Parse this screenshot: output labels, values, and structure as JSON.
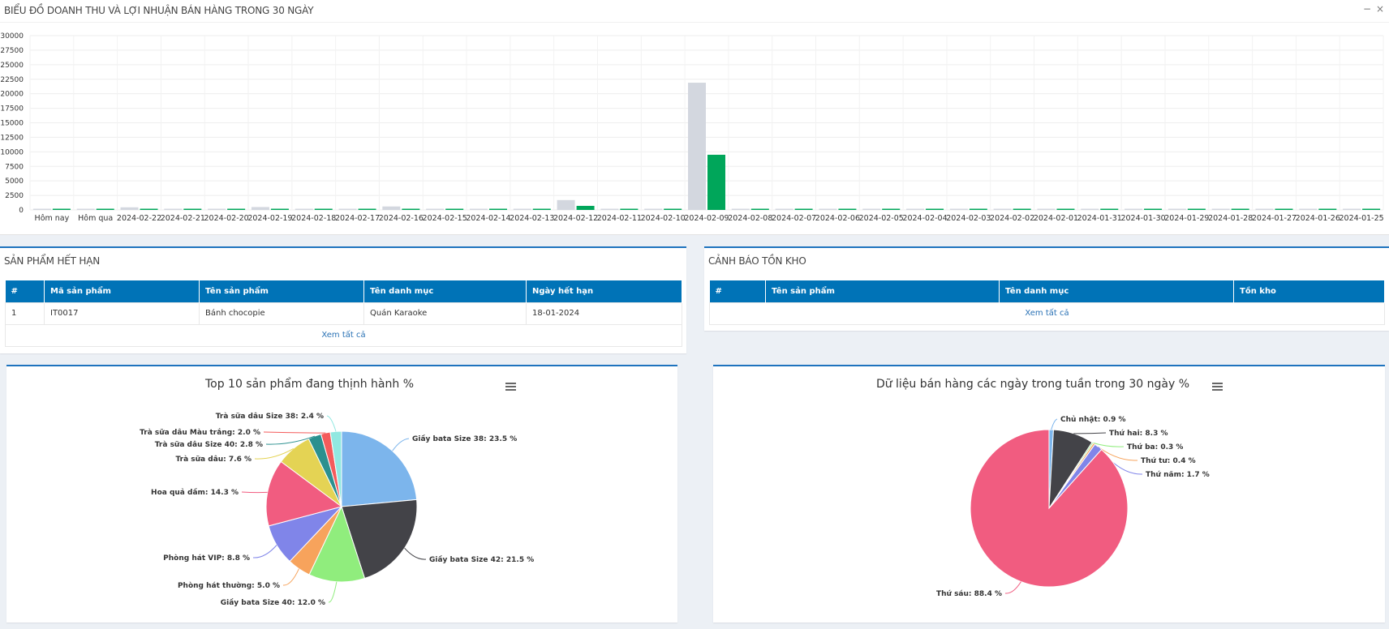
{
  "header": {
    "title": "BIỂU ĐỒ DOANH THU VÀ LỢI NHUẬN BÁN HÀNG TRONG 30 NGÀY",
    "minimize": "−",
    "close": "×"
  },
  "bar_chart": {
    "type": "bar",
    "categories": [
      "Hôm nay",
      "Hôm qua",
      "2024-02-22",
      "2024-02-21",
      "2024-02-20",
      "2024-02-19",
      "2024-02-18",
      "2024-02-17",
      "2024-02-16",
      "2024-02-15",
      "2024-02-14",
      "2024-02-13",
      "2024-02-12",
      "2024-02-11",
      "2024-02-10",
      "2024-02-09",
      "2024-02-08",
      "2024-02-07",
      "2024-02-06",
      "2024-02-05",
      "2024-02-04",
      "2024-02-03",
      "2024-02-02",
      "2024-02-01",
      "2024-01-31",
      "2024-01-30",
      "2024-01-29",
      "2024-01-28",
      "2024-01-27",
      "2024-01-26",
      "2024-01-25"
    ],
    "series": [
      {
        "color": "#d3d7df",
        "values": [
          50,
          100,
          450,
          50,
          100,
          500,
          50,
          80,
          600,
          50,
          50,
          50,
          1700,
          150,
          50,
          21900,
          80,
          80,
          50,
          50,
          50,
          50,
          50,
          50,
          50,
          50,
          50,
          50,
          50,
          50,
          50
        ]
      },
      {
        "color": "#00a65a",
        "values": [
          200,
          200,
          200,
          200,
          200,
          200,
          200,
          200,
          200,
          200,
          200,
          200,
          700,
          200,
          200,
          9500,
          200,
          200,
          200,
          200,
          200,
          200,
          200,
          200,
          200,
          200,
          200,
          200,
          200,
          200,
          200
        ]
      }
    ],
    "yticks": [
      "0",
      "2500",
      "5000",
      "7500",
      "10000",
      "12500",
      "15000",
      "17500",
      "20000",
      "22500",
      "25000",
      "27500",
      "30000"
    ],
    "ylim": [
      0,
      30000
    ]
  },
  "expired": {
    "title": "SẢN PHẨM HẾT HẠN",
    "columns": [
      "#",
      "Mã sản phẩm",
      "Tên sản phẩm",
      "Tên danh mục",
      "Ngày hết hạn"
    ],
    "rows": [
      [
        "1",
        "IT0017",
        "Bánh chocopie",
        "Quán Karaoke",
        "18-01-2024"
      ]
    ],
    "more": "Xem tất cả"
  },
  "stock": {
    "title": "CẢNH BÁO TỒN KHO",
    "columns": [
      "#",
      "Tên sản phẩm",
      "Tên danh mục",
      "Tồn kho"
    ],
    "more": "Xem tất cả"
  },
  "pie_products": {
    "title": "Top 10 sản phẩm đang thịnh hành %",
    "chart_data": {
      "type": "pie",
      "slices": [
        {
          "label": "Giầy bata Size 38: 23.5 %",
          "value": 23.5,
          "color": "#7cb5ec"
        },
        {
          "label": "Giầy bata Size 42: 21.5 %",
          "value": 21.5,
          "color": "#434348"
        },
        {
          "label": "Giầy bata Size 40: 12.0 %",
          "value": 12.0,
          "color": "#90ed7d"
        },
        {
          "label": "Phòng hát thường: 5.0 %",
          "value": 5.0,
          "color": "#f7a35c"
        },
        {
          "label": "Phòng hát VIP: 8.8 %",
          "value": 8.8,
          "color": "#8085e9"
        },
        {
          "label": "Hoa quả dầm: 14.3 %",
          "value": 14.3,
          "color": "#f15c80"
        },
        {
          "label": "Trà sữa dâu: 7.6 %",
          "value": 7.6,
          "color": "#e4d354"
        },
        {
          "label": "Trà sữa dâu Size 40: 2.8 %",
          "value": 2.8,
          "color": "#2b908f"
        },
        {
          "label": "Trà sữa dâu Màu trắng: 2.0 %",
          "value": 2.0,
          "color": "#f45b5b"
        },
        {
          "label": "Trà sữa dâu Size 38: 2.4 %",
          "value": 2.4,
          "color": "#91e8e1"
        }
      ]
    }
  },
  "pie_weekdays": {
    "title": "Dữ liệu bán hàng các ngày trong tuần trong 30 ngày %",
    "chart_data": {
      "type": "pie",
      "slices": [
        {
          "label": "Chủ nhật: 0.9 %",
          "value": 0.9,
          "color": "#7cb5ec"
        },
        {
          "label": "Thứ hai: 8.3 %",
          "value": 8.3,
          "color": "#434348"
        },
        {
          "label": "Thứ ba: 0.3 %",
          "value": 0.3,
          "color": "#90ed7d"
        },
        {
          "label": "Thứ tư: 0.4 %",
          "value": 0.4,
          "color": "#f7a35c"
        },
        {
          "label": "Thứ năm: 1.7 %",
          "value": 1.7,
          "color": "#8085e9"
        },
        {
          "label": "Thứ sáu: 88.4 %",
          "value": 88.4,
          "color": "#f15c80"
        }
      ]
    }
  }
}
